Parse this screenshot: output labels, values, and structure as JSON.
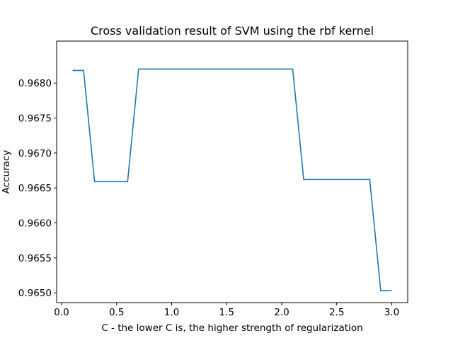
{
  "chart_data": {
    "type": "line",
    "title": "Cross validation result of SVM using the rbf kernel",
    "xlabel": "C - the lower C is, the higher strength of regularization",
    "ylabel": "Accuracy",
    "xlim": [
      -0.045,
      3.145
    ],
    "ylim": [
      0.96486,
      0.9686
    ],
    "xticks": [
      0.0,
      0.5,
      1.0,
      1.5,
      2.0,
      2.5,
      3.0
    ],
    "xtick_labels": [
      "0.0",
      "0.5",
      "1.0",
      "1.5",
      "2.0",
      "2.5",
      "3.0"
    ],
    "yticks": [
      0.965,
      0.9655,
      0.966,
      0.9665,
      0.967,
      0.9675,
      0.968
    ],
    "ytick_labels": [
      "0.9650",
      "0.9655",
      "0.9660",
      "0.9665",
      "0.9670",
      "0.9675",
      "0.9680"
    ],
    "grid": false,
    "legend": "none",
    "series": [
      {
        "color": "#1f77b4",
        "x": [
          0.1,
          0.2,
          0.3,
          0.4,
          0.5,
          0.6,
          0.7,
          0.8,
          0.9,
          1.0,
          1.1,
          1.2,
          1.3,
          1.4,
          1.5,
          1.6,
          1.7,
          1.8,
          1.9,
          2.0,
          2.1,
          2.2,
          2.3,
          2.4,
          2.5,
          2.6,
          2.7,
          2.8,
          2.9,
          3.0
        ],
        "y": [
          0.96818,
          0.96818,
          0.96659,
          0.96659,
          0.96659,
          0.96659,
          0.9682,
          0.9682,
          0.9682,
          0.9682,
          0.9682,
          0.9682,
          0.9682,
          0.9682,
          0.9682,
          0.9682,
          0.9682,
          0.9682,
          0.9682,
          0.9682,
          0.9682,
          0.96662,
          0.96662,
          0.96662,
          0.96662,
          0.96662,
          0.96662,
          0.96662,
          0.96503,
          0.96503
        ]
      }
    ]
  }
}
